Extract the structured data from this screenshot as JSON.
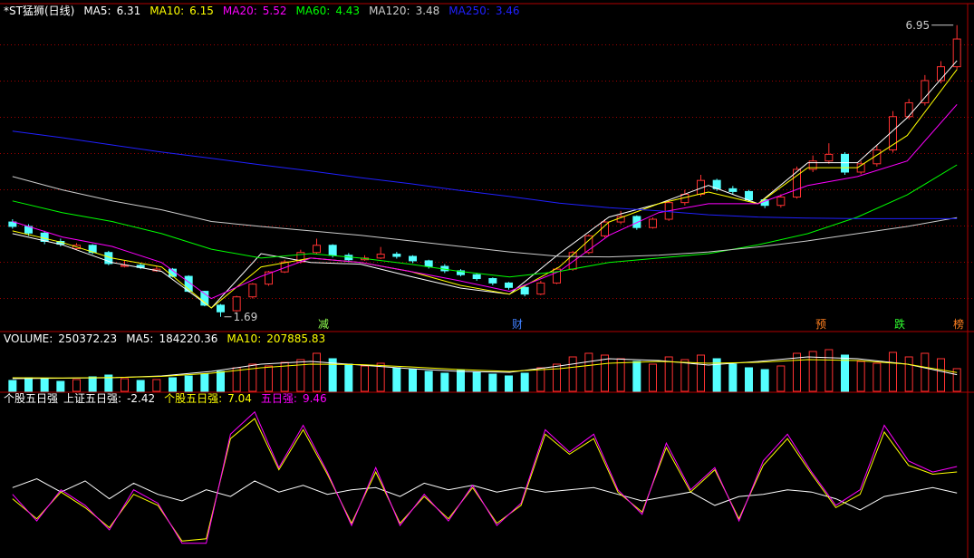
{
  "chart_data": [
    {
      "type": "candlestick",
      "title": "*ST猛狮(日线)",
      "ylim": [
        1.49,
        7.24
      ],
      "up_color": "#ff3232",
      "down_color": "#54ffff",
      "candles": [
        [
          3.4,
          3.45,
          3.28,
          3.32
        ],
        [
          3.32,
          3.36,
          3.15,
          3.2
        ],
        [
          3.2,
          3.24,
          3.0,
          3.05
        ],
        [
          3.05,
          3.1,
          2.96,
          3.0
        ],
        [
          2.92,
          3.02,
          2.9,
          2.98
        ],
        [
          2.98,
          3.0,
          2.82,
          2.85
        ],
        [
          2.85,
          2.88,
          2.62,
          2.65
        ],
        [
          2.6,
          2.7,
          2.58,
          2.62
        ],
        [
          2.62,
          2.66,
          2.55,
          2.58
        ],
        [
          2.52,
          2.6,
          2.5,
          2.55
        ],
        [
          2.55,
          2.57,
          2.4,
          2.42
        ],
        [
          2.42,
          2.44,
          2.13,
          2.15
        ],
        [
          2.15,
          2.16,
          1.88,
          1.9
        ],
        [
          1.9,
          1.92,
          1.69,
          1.78
        ],
        [
          1.8,
          2.07,
          1.78,
          2.05
        ],
        [
          2.05,
          2.3,
          2.02,
          2.28
        ],
        [
          2.28,
          2.52,
          2.25,
          2.5
        ],
        [
          2.5,
          2.72,
          2.48,
          2.68
        ],
        [
          2.68,
          2.9,
          2.65,
          2.85
        ],
        [
          2.85,
          3.1,
          2.82,
          2.98
        ],
        [
          2.98,
          3.0,
          2.76,
          2.8
        ],
        [
          2.8,
          2.84,
          2.68,
          2.72
        ],
        [
          2.72,
          2.8,
          2.7,
          2.75
        ],
        [
          2.75,
          2.95,
          2.73,
          2.82
        ],
        [
          2.82,
          2.86,
          2.74,
          2.78
        ],
        [
          2.78,
          2.8,
          2.66,
          2.7
        ],
        [
          2.7,
          2.72,
          2.56,
          2.6
        ],
        [
          2.6,
          2.64,
          2.48,
          2.52
        ],
        [
          2.52,
          2.55,
          2.42,
          2.45
        ],
        [
          2.45,
          2.48,
          2.34,
          2.38
        ],
        [
          2.38,
          2.4,
          2.26,
          2.3
        ],
        [
          2.3,
          2.32,
          2.18,
          2.22
        ],
        [
          2.22,
          2.25,
          2.06,
          2.1
        ],
        [
          2.1,
          2.34,
          2.08,
          2.3
        ],
        [
          2.3,
          2.58,
          2.28,
          2.55
        ],
        [
          2.55,
          2.88,
          2.52,
          2.85
        ],
        [
          2.85,
          3.18,
          2.82,
          3.15
        ],
        [
          3.15,
          3.45,
          3.12,
          3.4
        ],
        [
          3.4,
          3.6,
          3.36,
          3.5
        ],
        [
          3.5,
          3.52,
          3.26,
          3.3
        ],
        [
          3.3,
          3.48,
          3.28,
          3.45
        ],
        [
          3.45,
          3.8,
          3.42,
          3.75
        ],
        [
          3.75,
          3.98,
          3.7,
          3.9
        ],
        [
          3.9,
          4.25,
          3.86,
          4.15
        ],
        [
          4.15,
          4.18,
          3.96,
          4.0
        ],
        [
          4.0,
          4.05,
          3.9,
          3.95
        ],
        [
          3.95,
          3.98,
          3.76,
          3.8
        ],
        [
          3.8,
          3.82,
          3.65,
          3.7
        ],
        [
          3.7,
          3.9,
          3.66,
          3.85
        ],
        [
          3.85,
          4.4,
          3.82,
          4.35
        ],
        [
          4.35,
          4.6,
          4.3,
          4.5
        ],
        [
          4.5,
          4.82,
          4.45,
          4.62
        ],
        [
          4.62,
          4.66,
          4.25,
          4.3
        ],
        [
          4.3,
          4.5,
          4.26,
          4.45
        ],
        [
          4.45,
          4.78,
          4.4,
          4.7
        ],
        [
          4.7,
          5.4,
          4.65,
          5.3
        ],
        [
          5.3,
          5.62,
          5.25,
          5.55
        ],
        [
          5.55,
          6.05,
          5.5,
          5.95
        ],
        [
          5.95,
          6.3,
          5.9,
          6.2
        ],
        [
          6.2,
          6.95,
          6.15,
          6.7
        ]
      ],
      "high": 6.95,
      "low": 1.69,
      "series": [
        {
          "name": "MA5:",
          "color": "#ffffff",
          "values": [
            3.19,
            2.99,
            2.67,
            2.51,
            1.85,
            2.83,
            2.67,
            2.64,
            2.42,
            2.21,
            2.1,
            2.83,
            3.49,
            3.73,
            4.06,
            3.73,
            4.47,
            4.47,
            5.28,
            6.31
          ]
        },
        {
          "name": "MA10:",
          "color": "#ffff00",
          "values": [
            3.24,
            3.03,
            2.75,
            2.59,
            1.85,
            2.59,
            2.75,
            2.67,
            2.51,
            2.26,
            2.1,
            2.59,
            3.4,
            3.73,
            3.94,
            3.73,
            4.38,
            4.38,
            4.96,
            6.15
          ]
        },
        {
          "name": "MA20:",
          "color": "#ff00ff",
          "values": [
            3.41,
            3.13,
            2.96,
            2.67,
            2.02,
            2.42,
            2.75,
            2.67,
            2.51,
            2.34,
            2.15,
            2.51,
            3.16,
            3.57,
            3.73,
            3.73,
            4.06,
            4.22,
            4.5,
            5.52
          ]
        },
        {
          "name": "MA60:",
          "color": "#00ff00",
          "values": [
            3.78,
            3.57,
            3.41,
            3.19,
            2.91,
            2.75,
            2.83,
            2.75,
            2.64,
            2.51,
            2.41,
            2.51,
            2.67,
            2.75,
            2.83,
            2.99,
            3.19,
            3.49,
            3.89,
            4.43
          ]
        },
        {
          "name": "MA120:",
          "color": "#cccccc",
          "values": [
            4.22,
            3.98,
            3.78,
            3.62,
            3.41,
            3.32,
            3.24,
            3.16,
            3.06,
            2.96,
            2.86,
            2.78,
            2.77,
            2.8,
            2.86,
            2.95,
            3.06,
            3.19,
            3.32,
            3.48
          ]
        },
        {
          "name": "MA250:",
          "color": "#2020ff",
          "values": [
            5.04,
            4.92,
            4.79,
            4.66,
            4.55,
            4.43,
            4.32,
            4.2,
            4.09,
            3.97,
            3.86,
            3.74,
            3.66,
            3.6,
            3.53,
            3.49,
            3.47,
            3.46,
            3.46,
            3.46
          ]
        }
      ],
      "events": [
        "减",
        "财",
        "预",
        "跌",
        "榜"
      ]
    },
    {
      "type": "bar",
      "title": "VOLUME:",
      "ylim": [
        0,
        520000
      ],
      "values": [
        120000,
        150000,
        140000,
        110000,
        130000,
        160000,
        180000,
        140000,
        120000,
        130000,
        150000,
        170000,
        190000,
        220000,
        260000,
        300000,
        280000,
        320000,
        350000,
        420000,
        360000,
        300000,
        280000,
        310000,
        260000,
        240000,
        220000,
        200000,
        230000,
        210000,
        190000,
        170000,
        200000,
        260000,
        300000,
        380000,
        420000,
        400000,
        360000,
        330000,
        300000,
        380000,
        350000,
        400000,
        360000,
        300000,
        260000,
        240000,
        280000,
        420000,
        440000,
        460000,
        400000,
        330000,
        310000,
        430000,
        380000,
        420000,
        360000,
        250372.23
      ],
      "series": [
        {
          "name": "MA5:",
          "color": "#ffffff",
          "values": [
            140000,
            145000,
            150000,
            170000,
            220000,
            300000,
            330000,
            290000,
            250000,
            220000,
            210000,
            280000,
            360000,
            340000,
            290000,
            330000,
            380000,
            360000,
            300000,
            184220.36
          ]
        },
        {
          "name": "MA10:",
          "color": "#ffff00",
          "values": [
            150000,
            148000,
            152000,
            165000,
            200000,
            260000,
            300000,
            295000,
            270000,
            240000,
            220000,
            250000,
            310000,
            330000,
            310000,
            320000,
            350000,
            340000,
            300000,
            207885.83
          ]
        }
      ]
    },
    {
      "type": "line",
      "title": "个股五日强",
      "ylim": [
        -30,
        40
      ],
      "series": [
        {
          "name": "上证五日强:",
          "color": "#ffffff",
          "values": [
            0,
            4,
            -2,
            3,
            -5,
            2,
            -3,
            -6,
            -1,
            -4,
            3,
            -2,
            1,
            -3,
            -1,
            0,
            -4,
            2,
            -1,
            1,
            -2,
            0,
            -2,
            -1,
            0,
            -3,
            -6,
            -4,
            -2,
            -8,
            -4,
            -3,
            -1,
            -2,
            -5,
            -10,
            -4,
            -2,
            0,
            -2.42
          ]
        },
        {
          "name": "个股五日强:",
          "color": "#ffff00",
          "values": [
            -5,
            -14,
            -2,
            -9,
            -18,
            -3,
            -8,
            -24,
            -23,
            22,
            31,
            8,
            26,
            6,
            -16,
            7,
            -16,
            -4,
            -14,
            0,
            -16,
            -8,
            24,
            15,
            22,
            -2,
            -11,
            18,
            -2,
            8,
            -14,
            10,
            22,
            6,
            -9,
            -3,
            25,
            10,
            6,
            7.04
          ]
        },
        {
          "name": "五日强:",
          "color": "#ff00ff",
          "values": [
            -3,
            -15,
            -1,
            -8,
            -19,
            -1,
            -7,
            -25,
            -25,
            24,
            34,
            9,
            28,
            7,
            -17,
            9,
            -17,
            -3,
            -15,
            1,
            -17,
            -7,
            26,
            16,
            24,
            -1,
            -12,
            20,
            -1,
            9,
            -15,
            12,
            24,
            7,
            -8,
            -1,
            28,
            12,
            7,
            9.46
          ]
        }
      ]
    }
  ]
}
